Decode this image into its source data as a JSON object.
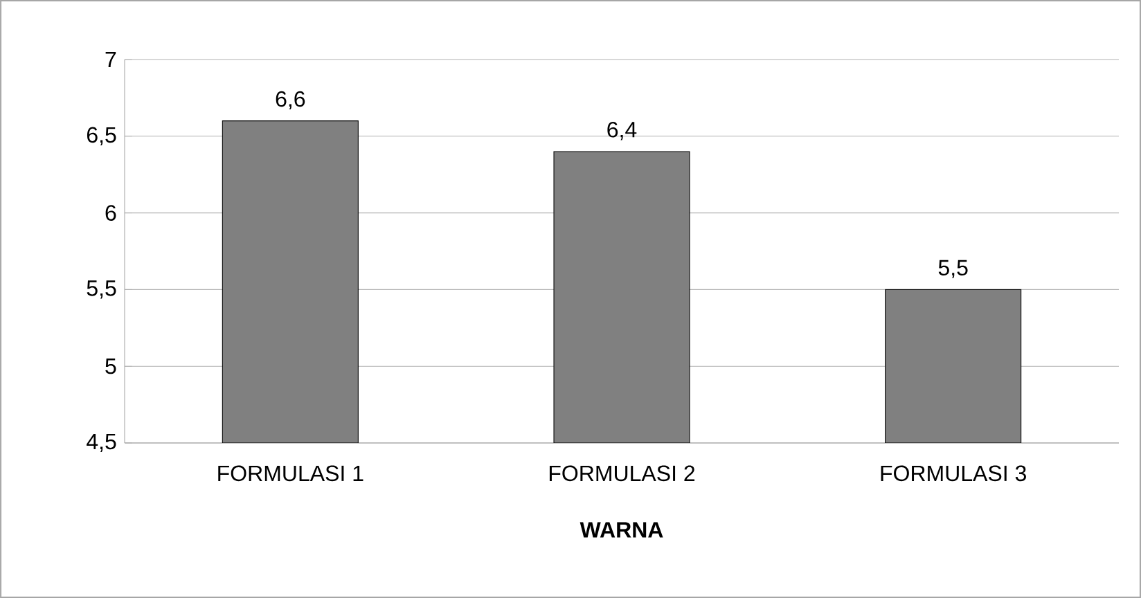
{
  "chart_data": {
    "type": "bar",
    "xlabel": "**WARNA**",
    "categories": [
      "FORMULASI 1",
      "FORMULASI 2",
      "FORMULASI 3"
    ],
    "values": [
      6.6,
      6.4,
      5.5
    ],
    "value_labels": [
      "6,6",
      "6,4",
      "5,5"
    ],
    "color": "#808080",
    "ylim": [
      4.5,
      7
    ],
    "yticks": [
      {
        "value": 4.5,
        "label": "4,5"
      },
      5,
      {
        "value": 5.5,
        "label": "5,5"
      },
      6,
      {
        "value": 6.5,
        "label": "6,5"
      },
      7
    ],
    "grid": "y"
  }
}
